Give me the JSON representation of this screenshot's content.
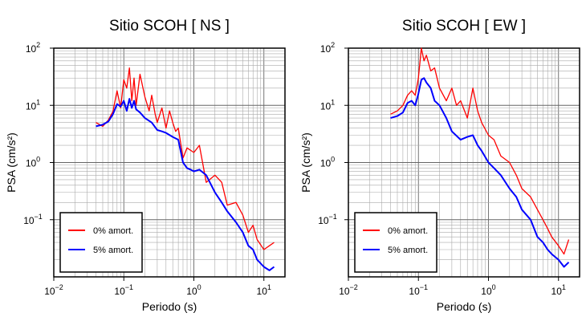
{
  "chart_data": [
    {
      "type": "line",
      "title": "Sitio SCOH [ NS ]",
      "xlabel": "Periodo (s)",
      "ylabel": "PSA (cm/s²)",
      "xscale": "log",
      "yscale": "log",
      "xlim": [
        0.01,
        20
      ],
      "ylim": [
        0.01,
        100
      ],
      "grid": true,
      "legend": "bottom-left",
      "series": [
        {
          "name": "0% amort.",
          "color": "#ff0000",
          "x": [
            0.04,
            0.05,
            0.06,
            0.07,
            0.08,
            0.09,
            0.1,
            0.11,
            0.12,
            0.13,
            0.14,
            0.15,
            0.17,
            0.2,
            0.23,
            0.25,
            0.28,
            0.3,
            0.35,
            0.4,
            0.45,
            0.5,
            0.55,
            0.6,
            0.7,
            0.8,
            1.0,
            1.2,
            1.5,
            2.0,
            2.5,
            3.0,
            4.0,
            5.0,
            6.0,
            7.0,
            8.0,
            10.0,
            12.0,
            14.0
          ],
          "values": [
            5.0,
            4.3,
            5.5,
            7.8,
            18,
            9,
            28,
            20,
            45,
            12,
            30,
            10,
            35,
            14,
            8,
            15,
            7,
            5,
            9,
            4,
            8,
            5,
            3.5,
            4,
            1.2,
            1.8,
            1.5,
            2.0,
            0.45,
            0.6,
            0.45,
            0.18,
            0.2,
            0.12,
            0.06,
            0.08,
            0.045,
            0.03,
            0.035,
            0.04
          ]
        },
        {
          "name": "5% amort.",
          "color": "#0000ff",
          "x": [
            0.04,
            0.05,
            0.06,
            0.07,
            0.08,
            0.09,
            0.1,
            0.11,
            0.12,
            0.13,
            0.14,
            0.15,
            0.17,
            0.2,
            0.25,
            0.3,
            0.35,
            0.4,
            0.5,
            0.6,
            0.7,
            0.8,
            0.9,
            1.0,
            1.2,
            1.5,
            2.0,
            2.5,
            3.0,
            4.0,
            5.0,
            6.0,
            7.0,
            8.0,
            10.0,
            12.0,
            14.0
          ],
          "values": [
            4.3,
            4.6,
            5.2,
            7.0,
            10.5,
            9.5,
            12.0,
            8.0,
            13.0,
            9.0,
            12.0,
            8.5,
            7.5,
            6.0,
            5.0,
            3.7,
            3.5,
            3.3,
            2.8,
            2.5,
            1.0,
            0.8,
            0.75,
            0.7,
            0.75,
            0.6,
            0.3,
            0.2,
            0.14,
            0.09,
            0.06,
            0.035,
            0.03,
            0.02,
            0.015,
            0.013,
            0.015
          ]
        }
      ]
    },
    {
      "type": "line",
      "title": "Sitio SCOH [ EW ]",
      "xlabel": "Periodo (s)",
      "ylabel": "PSA (cm/s²)",
      "xscale": "log",
      "yscale": "log",
      "xlim": [
        0.01,
        20
      ],
      "ylim": [
        0.01,
        100
      ],
      "grid": true,
      "legend": "bottom-left",
      "series": [
        {
          "name": "0% amort.",
          "color": "#ff0000",
          "x": [
            0.04,
            0.05,
            0.06,
            0.07,
            0.08,
            0.09,
            0.1,
            0.11,
            0.12,
            0.13,
            0.15,
            0.17,
            0.2,
            0.25,
            0.3,
            0.35,
            0.4,
            0.5,
            0.6,
            0.7,
            0.8,
            1.0,
            1.2,
            1.5,
            2.0,
            2.5,
            3.0,
            4.0,
            5.0,
            6.0,
            7.0,
            8.0,
            10.0,
            12.0,
            14.0
          ],
          "values": [
            7.0,
            8.0,
            10.0,
            15.0,
            18.0,
            15.0,
            30.0,
            100.0,
            60.0,
            75.0,
            40.0,
            45.0,
            20.0,
            12.0,
            20.0,
            10.0,
            12.0,
            6.0,
            20.0,
            8.0,
            5.0,
            3.0,
            2.5,
            1.3,
            1.0,
            0.6,
            0.35,
            0.25,
            0.15,
            0.1,
            0.07,
            0.05,
            0.035,
            0.025,
            0.045
          ]
        },
        {
          "name": "5% amort.",
          "color": "#0000ff",
          "x": [
            0.04,
            0.05,
            0.06,
            0.07,
            0.08,
            0.09,
            0.1,
            0.11,
            0.12,
            0.13,
            0.15,
            0.17,
            0.2,
            0.25,
            0.3,
            0.4,
            0.5,
            0.6,
            0.7,
            0.8,
            1.0,
            1.2,
            1.5,
            2.0,
            2.5,
            3.0,
            4.0,
            5.0,
            6.0,
            7.0,
            8.0,
            10.0,
            12.0,
            14.0
          ],
          "values": [
            6.0,
            6.5,
            7.5,
            11.0,
            12.0,
            10.0,
            16.0,
            28.0,
            30.0,
            25.0,
            20.0,
            12.0,
            10.0,
            6.0,
            3.5,
            2.5,
            2.8,
            3.0,
            2.0,
            1.6,
            1.0,
            0.8,
            0.6,
            0.35,
            0.25,
            0.15,
            0.1,
            0.05,
            0.04,
            0.03,
            0.025,
            0.02,
            0.015,
            0.018
          ]
        }
      ]
    }
  ]
}
